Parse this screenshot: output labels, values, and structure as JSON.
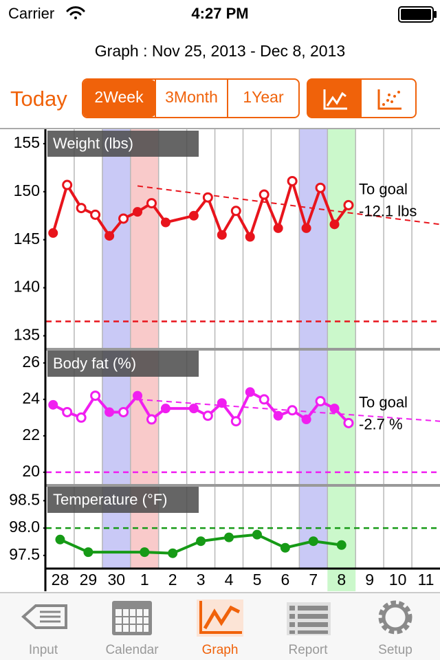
{
  "status_bar": {
    "carrier": "Carrier",
    "time": "4:27 PM"
  },
  "header": {
    "title": "Graph : Nov 25, 2013 - Dec 8, 2013"
  },
  "controls": {
    "today": "Today",
    "ranges": [
      "2Week",
      "3Month",
      "1Year"
    ],
    "selected_range": 0
  },
  "x_axis": {
    "categories": [
      "28",
      "29",
      "30",
      "1",
      "2",
      "3",
      "4",
      "5",
      "6",
      "7",
      "8",
      "9",
      "10",
      "11"
    ],
    "xlim": [
      0,
      14
    ],
    "xticks": [
      1,
      2,
      3,
      4,
      5,
      6,
      7,
      8,
      9,
      10,
      11,
      12,
      13
    ],
    "highlights": [
      null,
      null,
      "#c9c9f6",
      "#f9caca",
      null,
      null,
      null,
      null,
      null,
      "#c9c9f6",
      "#cbf8cb",
      null,
      null,
      null
    ]
  },
  "chart_data": [
    {
      "type": "line",
      "title": "Weight (lbs)",
      "ylim": [
        133.6,
        156.5
      ],
      "yticks": [
        135,
        140,
        145,
        150,
        155
      ],
      "goal": 136.5,
      "trend": {
        "x": [
          3.25,
          14
        ],
        "values": [
          150.6,
          146.6
        ]
      },
      "annotation": [
        "To goal",
        "-12.1 lbs"
      ],
      "series": [
        {
          "color": "#e8141c",
          "x": [
            0.25,
            0.75,
            1.25,
            1.75,
            2.25,
            2.75,
            3.25,
            3.75,
            4.25,
            5.25,
            5.75,
            6.25,
            6.75,
            7.25,
            7.75,
            8.25,
            8.75,
            9.25,
            9.75,
            10.25,
            10.75
          ],
          "values": [
            145.7,
            150.7,
            148.3,
            147.6,
            145.4,
            147.2,
            147.9,
            148.8,
            146.8,
            147.5,
            149.4,
            145.5,
            148.0,
            145.3,
            149.7,
            146.2,
            151.1,
            146.2,
            150.4,
            146.6,
            148.6
          ],
          "filled": [
            true,
            false,
            false,
            false,
            true,
            false,
            true,
            false,
            true,
            true,
            false,
            true,
            false,
            true,
            false,
            true,
            false,
            true,
            false,
            true,
            false
          ]
        }
      ]
    },
    {
      "type": "line",
      "title": "Body fat (%)",
      "ylim": [
        19.28,
        26.75
      ],
      "yticks": [
        20,
        22,
        24,
        26
      ],
      "goal": 20,
      "trend": {
        "x": [
          3.25,
          14
        ],
        "values": [
          24.0,
          22.8
        ]
      },
      "annotation": [
        "To goal",
        "-2.7 %"
      ],
      "series": [
        {
          "color": "#f01ef0",
          "x": [
            0.25,
            0.75,
            1.25,
            1.75,
            2.25,
            2.75,
            3.25,
            3.75,
            4.25,
            5.25,
            5.75,
            6.25,
            6.75,
            7.25,
            7.75,
            8.25,
            8.75,
            9.25,
            9.75,
            10.25,
            10.75
          ],
          "values": [
            23.7,
            23.3,
            23.0,
            24.2,
            23.3,
            23.3,
            24.2,
            22.9,
            23.5,
            23.5,
            23.1,
            23.8,
            22.8,
            24.4,
            24.0,
            23.1,
            23.4,
            22.9,
            23.9,
            23.5,
            22.7
          ],
          "filled": [
            true,
            false,
            false,
            false,
            true,
            false,
            true,
            false,
            true,
            true,
            false,
            true,
            false,
            true,
            false,
            true,
            false,
            true,
            false,
            true,
            false
          ]
        }
      ]
    },
    {
      "type": "line",
      "title": "Temperature (°F)",
      "ylim": [
        97.26,
        98.78
      ],
      "yticks": [
        97.5,
        {
          "value": 98,
          "label": "98.0"
        },
        98.5
      ],
      "goal": 98,
      "series": [
        {
          "color": "#169a16",
          "x": [
            0.5,
            1.5,
            3.5,
            4.5,
            5.5,
            6.5,
            7.5,
            8.5,
            9.5,
            10.5
          ],
          "values": [
            97.79,
            97.56,
            97.56,
            97.54,
            97.76,
            97.83,
            97.88,
            97.64,
            97.76,
            97.69
          ],
          "filled": [
            true,
            true,
            true,
            true,
            true,
            true,
            true,
            true,
            true,
            true
          ]
        }
      ]
    }
  ],
  "tab_bar": {
    "items": [
      "Input",
      "Calendar",
      "Graph",
      "Report",
      "Setup"
    ],
    "selected": 2
  }
}
